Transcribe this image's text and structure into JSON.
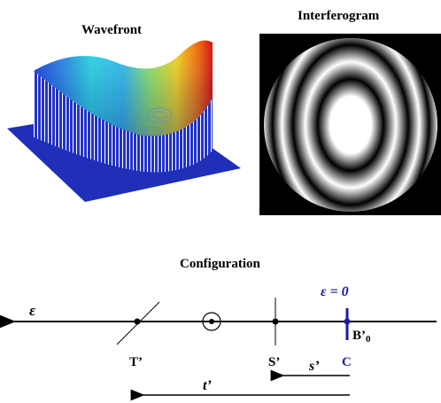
{
  "titles": {
    "wavefront": "Wavefront",
    "interferogram": "Interferogram",
    "configuration": "Configuration"
  },
  "config": {
    "axis_label": "ε",
    "epsilon_zero": "ε = 0",
    "label_T": "T’",
    "label_S": "S’",
    "label_C": "C",
    "label_B0": "B’",
    "label_B0_sub": "0",
    "label_s": "s’",
    "label_t": "t’"
  },
  "colors": {
    "accent_blue": "#1a1aa6",
    "axis": "#000000",
    "fringe_dark": "#000000",
    "fringe_light": "#ffffff"
  }
}
